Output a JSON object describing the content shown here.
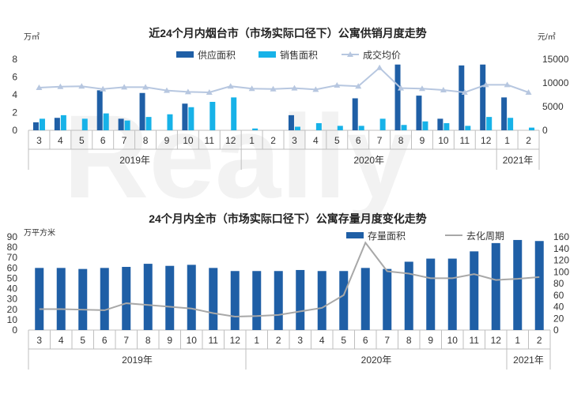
{
  "colors": {
    "supply": "#1f5fa6",
    "sales": "#17b2e8",
    "price": "#b7c7e0",
    "inventory": "#1f5fa6",
    "cycle": "#a8a8a8"
  },
  "watermark": "Really",
  "chart_data": [
    {
      "type": "bar",
      "title": "近24个月内烟台市（市场实际口径下）公寓供销月度走势",
      "left_unit": "万㎡",
      "right_unit": "元/㎡",
      "categories": [
        "3",
        "4",
        "5",
        "6",
        "7",
        "8",
        "9",
        "10",
        "11",
        "12",
        "1",
        "2",
        "3",
        "4",
        "5",
        "6",
        "7",
        "8",
        "9",
        "10",
        "11",
        "12",
        "1",
        "2"
      ],
      "years": [
        {
          "label": "2019年",
          "start": 0,
          "end": 9
        },
        {
          "label": "2020年",
          "start": 10,
          "end": 21
        },
        {
          "label": "2021年",
          "start": 22,
          "end": 23
        }
      ],
      "ylim": [
        0,
        8
      ],
      "yticks": [
        0,
        2,
        4,
        6,
        8
      ],
      "y2lim": [
        0,
        15000
      ],
      "y2ticks": [
        0,
        5000,
        10000,
        15000
      ],
      "series": [
        {
          "name": "供应面积",
          "kind": "bar",
          "axis": "left",
          "values": [
            0.9,
            1.4,
            0,
            4.5,
            1.3,
            4.2,
            0,
            3.0,
            0,
            0,
            0,
            0,
            1.7,
            0,
            0,
            3.6,
            0,
            7.4,
            3.9,
            1.3,
            7.3,
            7.4,
            3.7,
            0
          ]
        },
        {
          "name": "销售面积",
          "kind": "bar",
          "axis": "right_none",
          "values": [
            1.3,
            1.7,
            1.3,
            1.9,
            1.1,
            1.5,
            1.8,
            2.6,
            3.2,
            3.7,
            0.2,
            0,
            0.4,
            0.8,
            0.5,
            0.5,
            1.3,
            0.6,
            1.0,
            0.8,
            0.5,
            1.5,
            1.4,
            0.3
          ]
        },
        {
          "name": "成交均价",
          "kind": "line",
          "axis": "right",
          "values": [
            9000,
            9200,
            9300,
            8700,
            9100,
            9100,
            8400,
            8100,
            8000,
            9300,
            8800,
            8700,
            8900,
            8600,
            9500,
            9300,
            13200,
            8900,
            8800,
            8500,
            8000,
            9600,
            9600,
            8000
          ]
        }
      ]
    },
    {
      "type": "bar",
      "title": "24个月内全市（市场实际口径下）公寓存量月度变化走势",
      "left_unit": "万平方米",
      "categories": [
        "3",
        "4",
        "5",
        "6",
        "7",
        "8",
        "9",
        "10",
        "11",
        "12",
        "1",
        "2",
        "3",
        "4",
        "5",
        "6",
        "7",
        "8",
        "9",
        "10",
        "11",
        "12",
        "1",
        "2"
      ],
      "years": [
        {
          "label": "2019年",
          "start": 0,
          "end": 9
        },
        {
          "label": "2020年",
          "start": 10,
          "end": 21
        },
        {
          "label": "2021年",
          "start": 22,
          "end": 23
        }
      ],
      "ylim": [
        0,
        90
      ],
      "yticks": [
        0,
        10,
        20,
        30,
        40,
        50,
        60,
        70,
        80,
        90
      ],
      "y2lim": [
        0,
        160
      ],
      "y2ticks": [
        0,
        20,
        40,
        60,
        80,
        100,
        120,
        140,
        160
      ],
      "series": [
        {
          "name": "存量面积",
          "kind": "bar",
          "axis": "left",
          "values": [
            60,
            60,
            59,
            60,
            61,
            64,
            62,
            63,
            60,
            57,
            57,
            57,
            58,
            57,
            57,
            60,
            59,
            66,
            69,
            69,
            76,
            84,
            87,
            86
          ]
        },
        {
          "name": "去化周期",
          "kind": "line",
          "axis": "right",
          "values": [
            36,
            36,
            35,
            34,
            46,
            43,
            40,
            37,
            29,
            23,
            24,
            26,
            32,
            38,
            60,
            150,
            101,
            97,
            89,
            89,
            96,
            86,
            88,
            91
          ]
        }
      ]
    }
  ]
}
